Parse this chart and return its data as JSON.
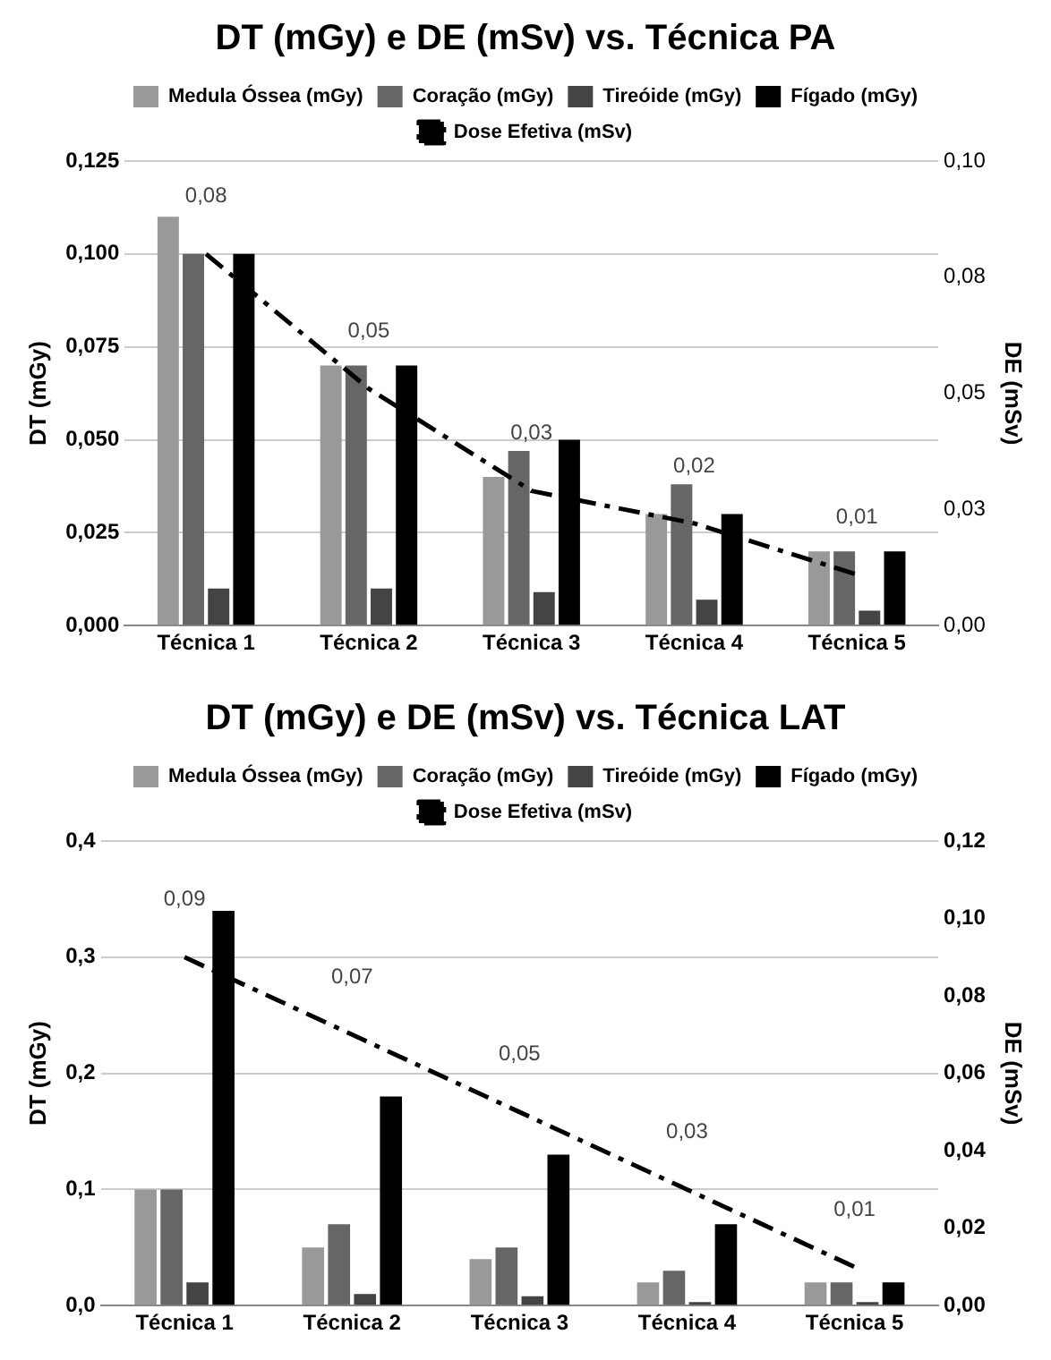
{
  "chart_data": [
    {
      "type": "bar",
      "title": "DT (mGy) e DE (mSv) vs. Técnica PA",
      "ylabel": "DT (mGy)",
      "y2label": "DE (mSv)",
      "categories": [
        "Técnica 1",
        "Técnica 2",
        "Técnica 3",
        "Técnica 4",
        "Técnica 5"
      ],
      "series": [
        {
          "name": "Medula Óssea (mGy)",
          "color": "#999999",
          "values": [
            0.11,
            0.07,
            0.04,
            0.03,
            0.02
          ]
        },
        {
          "name": "Coração (mGy)",
          "color": "#666666",
          "values": [
            0.1,
            0.07,
            0.047,
            0.038,
            0.02
          ]
        },
        {
          "name": "Tireóide (mGy)",
          "color": "#444444",
          "values": [
            0.01,
            0.01,
            0.009,
            0.007,
            0.004
          ]
        },
        {
          "name": "Fígado (mGy)",
          "color": "#000000",
          "values": [
            0.1,
            0.07,
            0.05,
            0.03,
            0.02
          ]
        },
        {
          "name": "Dose Efetiva (mSv)",
          "type": "line",
          "axis": "y2",
          "color": "#000000",
          "line_style": "dashed",
          "marker": "none",
          "values": [
            0.08,
            0.051,
            0.029,
            0.022,
            0.011
          ],
          "value_labels": [
            "0,08",
            "0,05",
            "0,03",
            "0,02",
            "0,01"
          ]
        }
      ],
      "ylim": [
        0,
        0.125
      ],
      "yticks": [
        {
          "value": 0,
          "label": "0,000"
        },
        {
          "value": 0.025,
          "label": "0,025"
        },
        {
          "value": 0.05,
          "label": "0,050"
        },
        {
          "value": 0.075,
          "label": "0,075"
        },
        {
          "value": 0.1,
          "label": "0,100"
        },
        {
          "value": 0.125,
          "label": "0,125"
        }
      ],
      "y2lim": [
        0,
        0.1
      ],
      "y2ticks": [
        {
          "value": 0,
          "label": "0,00"
        },
        {
          "value": 0.025,
          "label": "0,03"
        },
        {
          "value": 0.05,
          "label": "0,05"
        },
        {
          "value": 0.075,
          "label": "0,08"
        },
        {
          "value": 0.1,
          "label": "0,10"
        }
      ],
      "grid": "y",
      "legend": "top"
    },
    {
      "type": "bar",
      "title": "DT (mGy) e DE (mSv) vs. Técnica LAT",
      "ylabel": "DT (mGy)",
      "y2label": "DE (mSv)",
      "categories": [
        "Técnica 1",
        "Técnica 2",
        "Técnica 3",
        "Técnica 4",
        "Técnica 5"
      ],
      "series": [
        {
          "name": "Medula Óssea (mGy)",
          "color": "#999999",
          "values": [
            0.1,
            0.05,
            0.04,
            0.02,
            0.02
          ]
        },
        {
          "name": "Coração (mGy)",
          "color": "#666666",
          "values": [
            0.1,
            0.07,
            0.05,
            0.03,
            0.02
          ]
        },
        {
          "name": "Tireóide (mGy)",
          "color": "#444444",
          "values": [
            0.02,
            0.01,
            0.008,
            0.003,
            0.003
          ]
        },
        {
          "name": "Fígado (mGy)",
          "color": "#000000",
          "values": [
            0.34,
            0.18,
            0.13,
            0.07,
            0.02
          ]
        },
        {
          "name": "Dose Efetiva (mSv)",
          "type": "line",
          "axis": "y2",
          "color": "#000000",
          "line_style": "dashed",
          "marker": "none",
          "values": [
            0.09,
            0.07,
            0.05,
            0.03,
            0.01
          ],
          "value_labels": [
            "0,09",
            "0,07",
            "0,05",
            "0,03",
            "0,01"
          ]
        }
      ],
      "ylim": [
        0,
        0.4
      ],
      "yticks": [
        {
          "value": 0,
          "label": "0,0"
        },
        {
          "value": 0.1,
          "label": "0,1"
        },
        {
          "value": 0.2,
          "label": "0,2"
        },
        {
          "value": 0.3,
          "label": "0,3"
        },
        {
          "value": 0.4,
          "label": "0,4"
        }
      ],
      "y2lim": [
        0,
        0.12
      ],
      "y2ticks": [
        {
          "value": 0,
          "label": "0,00"
        },
        {
          "value": 0.02,
          "label": "0,02"
        },
        {
          "value": 0.04,
          "label": "0,04"
        },
        {
          "value": 0.06,
          "label": "0,06"
        },
        {
          "value": 0.08,
          "label": "0,08"
        },
        {
          "value": 0.1,
          "label": "0,10"
        },
        {
          "value": 0.12,
          "label": "0,12"
        }
      ],
      "grid": "y",
      "legend": "top"
    }
  ]
}
